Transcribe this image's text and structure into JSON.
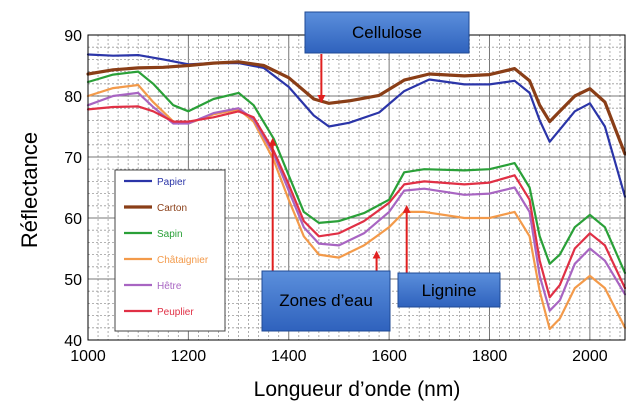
{
  "chart_data": {
    "type": "line",
    "title": "",
    "xlabel": "Longueur d’onde (nm)",
    "ylabel": "Réflectance",
    "xlim": [
      1000,
      2070
    ],
    "ylim": [
      40,
      90
    ],
    "x_ticks": [
      "1000",
      "1200",
      "1400",
      "1600",
      "1800",
      "2000"
    ],
    "y_ticks": [
      "40",
      "50",
      "60",
      "70",
      "80",
      "90"
    ],
    "grid": true,
    "legend_position": "bottom-left",
    "series": [
      {
        "name": "Papier",
        "color": "#2b35a8",
        "points": [
          [
            1000,
            86.8
          ],
          [
            1050,
            86.6
          ],
          [
            1100,
            86.7
          ],
          [
            1150,
            86.0
          ],
          [
            1200,
            85.2
          ],
          [
            1250,
            85.4
          ],
          [
            1300,
            85.4
          ],
          [
            1350,
            84.6
          ],
          [
            1400,
            81.5
          ],
          [
            1450,
            76.8
          ],
          [
            1480,
            75.0
          ],
          [
            1520,
            75.6
          ],
          [
            1580,
            77.3
          ],
          [
            1630,
            80.8
          ],
          [
            1680,
            82.7
          ],
          [
            1750,
            81.9
          ],
          [
            1800,
            81.9
          ],
          [
            1850,
            82.5
          ],
          [
            1880,
            80.5
          ],
          [
            1900,
            76.0
          ],
          [
            1920,
            72.5
          ],
          [
            1940,
            74.5
          ],
          [
            1970,
            77.5
          ],
          [
            2000,
            78.8
          ],
          [
            2030,
            75.0
          ],
          [
            2070,
            63.5
          ]
        ]
      },
      {
        "name": "Carton",
        "color": "#8a3e17",
        "points": [
          [
            1000,
            83.6
          ],
          [
            1050,
            84.3
          ],
          [
            1100,
            84.6
          ],
          [
            1150,
            84.7
          ],
          [
            1200,
            85.0
          ],
          [
            1250,
            85.4
          ],
          [
            1300,
            85.6
          ],
          [
            1350,
            85.0
          ],
          [
            1400,
            83.0
          ],
          [
            1450,
            79.5
          ],
          [
            1480,
            78.8
          ],
          [
            1520,
            79.2
          ],
          [
            1580,
            80.1
          ],
          [
            1630,
            82.6
          ],
          [
            1680,
            83.6
          ],
          [
            1750,
            83.3
          ],
          [
            1800,
            83.5
          ],
          [
            1850,
            84.5
          ],
          [
            1880,
            82.5
          ],
          [
            1900,
            78.5
          ],
          [
            1920,
            75.8
          ],
          [
            1940,
            77.5
          ],
          [
            1970,
            80.0
          ],
          [
            2000,
            81.2
          ],
          [
            2030,
            79.0
          ],
          [
            2070,
            70.5
          ]
        ]
      },
      {
        "name": "Sapin",
        "color": "#2aa038",
        "points": [
          [
            1000,
            82.3
          ],
          [
            1050,
            83.5
          ],
          [
            1100,
            84.0
          ],
          [
            1130,
            82.0
          ],
          [
            1170,
            78.5
          ],
          [
            1200,
            77.5
          ],
          [
            1250,
            79.5
          ],
          [
            1300,
            80.5
          ],
          [
            1330,
            78.5
          ],
          [
            1370,
            73.0
          ],
          [
            1400,
            67.0
          ],
          [
            1430,
            61.0
          ],
          [
            1460,
            59.2
          ],
          [
            1500,
            59.5
          ],
          [
            1550,
            60.8
          ],
          [
            1600,
            63.0
          ],
          [
            1630,
            67.5
          ],
          [
            1670,
            68.0
          ],
          [
            1750,
            67.8
          ],
          [
            1800,
            68.0
          ],
          [
            1850,
            69.0
          ],
          [
            1880,
            65.0
          ],
          [
            1900,
            57.0
          ],
          [
            1920,
            52.5
          ],
          [
            1940,
            54.0
          ],
          [
            1970,
            58.5
          ],
          [
            2000,
            60.5
          ],
          [
            2030,
            58.5
          ],
          [
            2070,
            51.0
          ]
        ]
      },
      {
        "name": "Châtaignier",
        "color": "#f39a4a",
        "points": [
          [
            1000,
            80.0
          ],
          [
            1050,
            81.3
          ],
          [
            1100,
            81.8
          ],
          [
            1130,
            79.0
          ],
          [
            1170,
            75.8
          ],
          [
            1200,
            75.5
          ],
          [
            1250,
            77.0
          ],
          [
            1300,
            77.8
          ],
          [
            1330,
            75.8
          ],
          [
            1370,
            69.5
          ],
          [
            1400,
            63.0
          ],
          [
            1430,
            57.0
          ],
          [
            1460,
            54.0
          ],
          [
            1500,
            53.5
          ],
          [
            1550,
            55.5
          ],
          [
            1600,
            58.5
          ],
          [
            1630,
            61.0
          ],
          [
            1670,
            61.0
          ],
          [
            1750,
            60.0
          ],
          [
            1800,
            60.0
          ],
          [
            1850,
            61.0
          ],
          [
            1880,
            57.0
          ],
          [
            1900,
            48.0
          ],
          [
            1920,
            41.8
          ],
          [
            1940,
            43.5
          ],
          [
            1970,
            48.5
          ],
          [
            2000,
            50.5
          ],
          [
            2030,
            48.5
          ],
          [
            2070,
            42.0
          ]
        ]
      },
      {
        "name": "Hêtre",
        "color": "#a865c2",
        "points": [
          [
            1000,
            78.5
          ],
          [
            1050,
            80.0
          ],
          [
            1100,
            80.5
          ],
          [
            1130,
            78.2
          ],
          [
            1170,
            75.5
          ],
          [
            1200,
            75.5
          ],
          [
            1250,
            77.2
          ],
          [
            1300,
            78.0
          ],
          [
            1330,
            76.2
          ],
          [
            1370,
            70.5
          ],
          [
            1400,
            64.5
          ],
          [
            1430,
            58.5
          ],
          [
            1460,
            55.8
          ],
          [
            1500,
            55.5
          ],
          [
            1550,
            57.5
          ],
          [
            1600,
            61.0
          ],
          [
            1630,
            64.5
          ],
          [
            1670,
            64.8
          ],
          [
            1750,
            63.8
          ],
          [
            1800,
            64.0
          ],
          [
            1850,
            65.0
          ],
          [
            1880,
            61.0
          ],
          [
            1900,
            50.5
          ],
          [
            1920,
            44.8
          ],
          [
            1940,
            46.5
          ],
          [
            1970,
            52.5
          ],
          [
            2000,
            55.0
          ],
          [
            2030,
            53.0
          ],
          [
            2070,
            47.5
          ]
        ]
      },
      {
        "name": "Peuplier",
        "color": "#e03045",
        "points": [
          [
            1000,
            77.8
          ],
          [
            1050,
            78.2
          ],
          [
            1100,
            78.3
          ],
          [
            1130,
            77.5
          ],
          [
            1170,
            75.8
          ],
          [
            1200,
            75.8
          ],
          [
            1250,
            76.5
          ],
          [
            1300,
            77.5
          ],
          [
            1330,
            76.5
          ],
          [
            1370,
            71.0
          ],
          [
            1400,
            65.5
          ],
          [
            1430,
            59.5
          ],
          [
            1460,
            57.0
          ],
          [
            1500,
            57.5
          ],
          [
            1550,
            59.5
          ],
          [
            1600,
            62.5
          ],
          [
            1630,
            65.5
          ],
          [
            1670,
            66.0
          ],
          [
            1750,
            65.5
          ],
          [
            1800,
            65.8
          ],
          [
            1850,
            67.0
          ],
          [
            1880,
            63.0
          ],
          [
            1900,
            53.0
          ],
          [
            1920,
            47.0
          ],
          [
            1940,
            49.0
          ],
          [
            1970,
            55.0
          ],
          [
            2000,
            57.5
          ],
          [
            2030,
            55.5
          ],
          [
            2070,
            48.5
          ]
        ]
      }
    ],
    "annotations": [
      {
        "label": "Cellulose",
        "arrows": [
          [
            1465,
            79.5
          ]
        ]
      },
      {
        "label": "Zones d’eau",
        "arrows": [
          [
            1368,
            72.5
          ],
          [
            1575,
            54.0
          ]
        ]
      },
      {
        "label": "Lignine",
        "arrows": [
          [
            1635,
            61.5
          ]
        ]
      }
    ]
  }
}
